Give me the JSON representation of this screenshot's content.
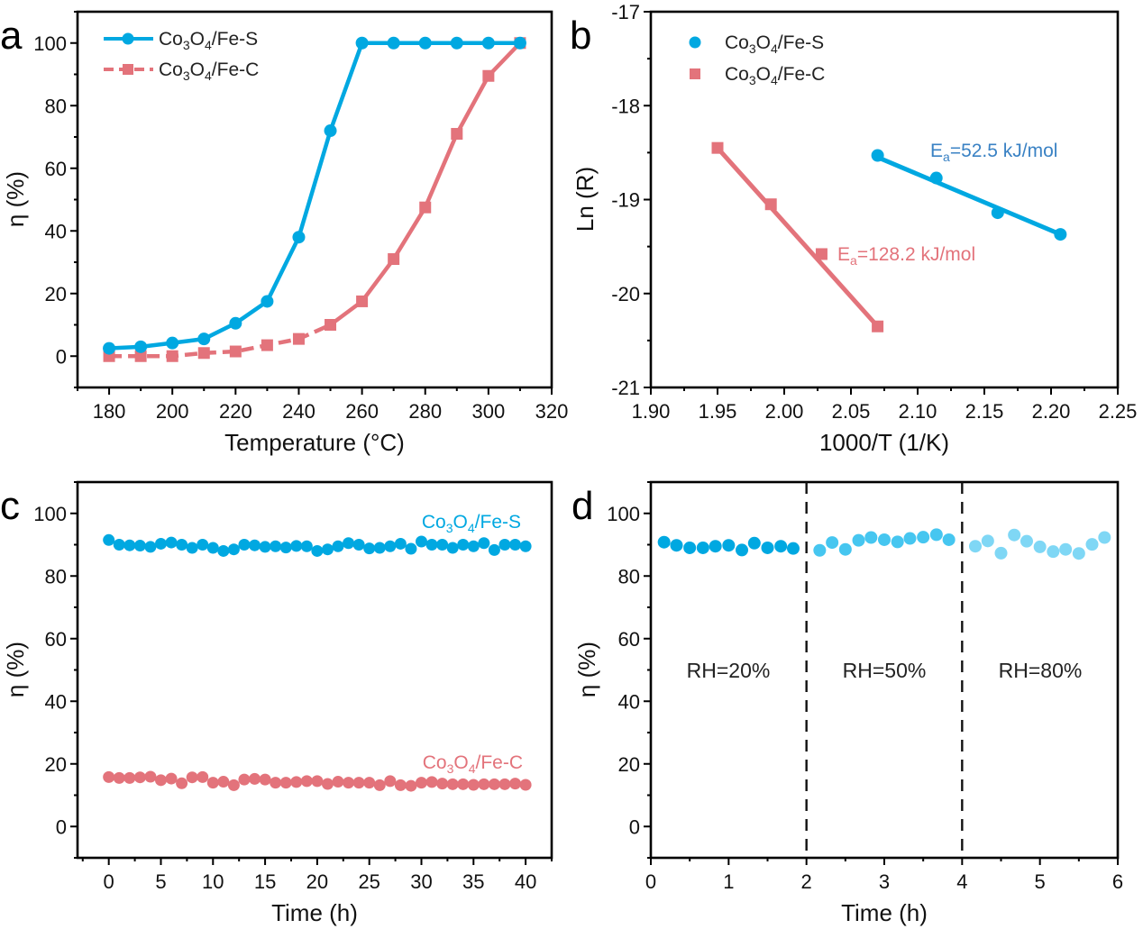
{
  "colors": {
    "fe_s": "#00a8e1",
    "fe_c": "#e3737b",
    "ea_s_text": "#3a82c4",
    "rh20": "#00a8e1",
    "rh50": "#46c6f0",
    "rh80": "#7fd7f5"
  },
  "chart_data": [
    {
      "panel": "a",
      "type": "line",
      "panel_letter": "a",
      "xlabel": "Temperature (°C)",
      "ylabel": "η (%)",
      "xlim": [
        170,
        320
      ],
      "ylim": [
        -10,
        110
      ],
      "xticks": [
        180,
        200,
        220,
        240,
        260,
        280,
        300,
        320
      ],
      "yticks": [
        0,
        20,
        40,
        60,
        80,
        100
      ],
      "x": [
        180,
        190,
        200,
        210,
        220,
        230,
        240,
        250,
        260,
        270,
        280,
        290,
        300,
        310
      ],
      "series": [
        {
          "name": "Co3O4/Fe-S",
          "legend_main": "Co",
          "legend_sub1": "3",
          "legend_mid": "O",
          "legend_sub2": "4",
          "legend_tail": "/Fe-S",
          "marker": "circle",
          "line": "solid",
          "values": [
            2.5,
            3,
            4.2,
            5.5,
            10.5,
            17.5,
            38,
            72,
            100,
            100,
            100,
            100,
            100,
            100
          ]
        },
        {
          "name": "Co3O4/Fe-C",
          "legend_main": "Co",
          "legend_sub1": "3",
          "legend_mid": "O",
          "legend_sub2": "4",
          "legend_tail": "/Fe-C",
          "marker": "square",
          "line": "dashed-then-solid",
          "values": [
            0,
            0,
            0,
            1,
            1.5,
            3.5,
            5.5,
            10,
            17.5,
            31,
            47.5,
            71,
            89.5,
            100
          ]
        }
      ],
      "legend_position": "top-left"
    },
    {
      "panel": "b",
      "type": "scatter",
      "panel_letter": "b",
      "xlabel": "1000/T (1/K)",
      "ylabel": "Ln (R)",
      "xlim": [
        1.9,
        2.25
      ],
      "ylim": [
        -21,
        -17
      ],
      "xticks": [
        "1.90",
        "1.95",
        "2.00",
        "2.05",
        "2.10",
        "2.15",
        "2.20",
        "2.25"
      ],
      "yticks": [
        "-21",
        "-20",
        "-19",
        "-18",
        "-17"
      ],
      "series": [
        {
          "name": "Co3O4/Fe-S",
          "legend_tail": "/Fe-S",
          "marker": "circle",
          "x": [
            2.07,
            2.114,
            2.16,
            2.207
          ],
          "y": [
            -18.53,
            -18.77,
            -19.14,
            -19.37
          ],
          "fit": {
            "x": [
              2.07,
              2.207
            ],
            "y": [
              -18.55,
              -19.37
            ]
          },
          "annotation_prefix": "E",
          "annotation_sub": "a",
          "annotation_text": "=52.5 kJ/mol"
        },
        {
          "name": "Co3O4/Fe-C",
          "legend_tail": "/Fe-C",
          "marker": "square",
          "x": [
            1.95,
            1.99,
            2.028,
            2.07
          ],
          "y": [
            -18.45,
            -19.05,
            -19.58,
            -20.35
          ],
          "fit": {
            "x": [
              1.95,
              2.07
            ],
            "y": [
              -18.45,
              -20.35
            ]
          },
          "annotation_prefix": "E",
          "annotation_sub": "a",
          "annotation_text": "=128.2 kJ/mol"
        }
      ],
      "legend_position": "top-left"
    },
    {
      "panel": "c",
      "type": "scatter",
      "panel_letter": "c",
      "xlabel": "Time (h)",
      "ylabel": "η (%)",
      "xlim": [
        -3,
        42.5
      ],
      "ylim": [
        -10,
        110
      ],
      "xticks": [
        0,
        5,
        10,
        15,
        20,
        25,
        30,
        35,
        40
      ],
      "yticks": [
        0,
        20,
        40,
        60,
        80,
        100
      ],
      "x": [
        0,
        1,
        2,
        3,
        4,
        5,
        6,
        7,
        8,
        9,
        10,
        11,
        12,
        13,
        14,
        15,
        16,
        17,
        18,
        19,
        20,
        21,
        22,
        23,
        24,
        25,
        26,
        27,
        28,
        29,
        30,
        31,
        32,
        33,
        34,
        35,
        36,
        37,
        38,
        39,
        40
      ],
      "series": [
        {
          "name": "Co3O4/Fe-S",
          "label_tail": "/Fe-S",
          "marker": "circle",
          "values": [
            91.5,
            90,
            89.8,
            89.7,
            89.3,
            90.3,
            90.7,
            90,
            89,
            90,
            89,
            88,
            88.5,
            90,
            89.8,
            89.3,
            89.5,
            89.1,
            89.6,
            89.5,
            88,
            88.5,
            89.5,
            90.5,
            90,
            88.8,
            89,
            89.5,
            90.3,
            88.7,
            91,
            90,
            90,
            89,
            90,
            89.5,
            90.5,
            88.3,
            90,
            90,
            89.5
          ]
        },
        {
          "name": "Co3O4/Fe-C",
          "label_tail": "/Fe-C",
          "marker": "circle",
          "values": [
            15.8,
            15.5,
            15.5,
            15.7,
            15.9,
            14.8,
            15.3,
            13.8,
            15.7,
            15.8,
            14,
            14.3,
            13.2,
            15,
            15.2,
            15,
            14,
            14,
            14.2,
            14.5,
            14.5,
            13.6,
            14.3,
            14,
            14,
            14,
            13.2,
            14.5,
            13.2,
            13,
            14,
            14.2,
            13.7,
            13.5,
            13.5,
            13.3,
            13.5,
            13.5,
            13.5,
            13.7,
            13.3
          ]
        }
      ],
      "legend_position": "inline-right"
    },
    {
      "panel": "d",
      "type": "scatter",
      "panel_letter": "d",
      "xlabel": "Time (h)",
      "ylabel": "η (%)",
      "xlim": [
        0,
        6
      ],
      "ylim": [
        -10,
        110
      ],
      "xticks": [
        0,
        1,
        2,
        3,
        4,
        5,
        6
      ],
      "yticks": [
        0,
        20,
        40,
        60,
        80,
        100
      ],
      "dividers_at": [
        2,
        4
      ],
      "regions": [
        {
          "label": "RH=20%",
          "x": [
            0.17,
            0.33,
            0.5,
            0.67,
            0.83,
            1.0,
            1.17,
            1.33,
            1.5,
            1.67,
            1.83
          ],
          "values": [
            90.8,
            89.8,
            89,
            89,
            89.5,
            89.8,
            88.3,
            90.5,
            89,
            89.5,
            88.8
          ]
        },
        {
          "label": "RH=50%",
          "x": [
            2.17,
            2.33,
            2.5,
            2.67,
            2.83,
            3.0,
            3.17,
            3.33,
            3.5,
            3.67,
            3.83
          ],
          "values": [
            88.2,
            90.7,
            88.5,
            91.4,
            92.3,
            91.6,
            90.9,
            92,
            92.4,
            93.2,
            91.6
          ]
        },
        {
          "label": "RH=80%",
          "x": [
            4.17,
            4.33,
            4.5,
            4.67,
            4.83,
            5.0,
            5.17,
            5.33,
            5.5,
            5.67,
            5.83
          ],
          "values": [
            89.5,
            91.2,
            87.3,
            93.1,
            91.1,
            89.3,
            87.8,
            88.5,
            87.2,
            90.1,
            92.3
          ]
        }
      ]
    }
  ]
}
